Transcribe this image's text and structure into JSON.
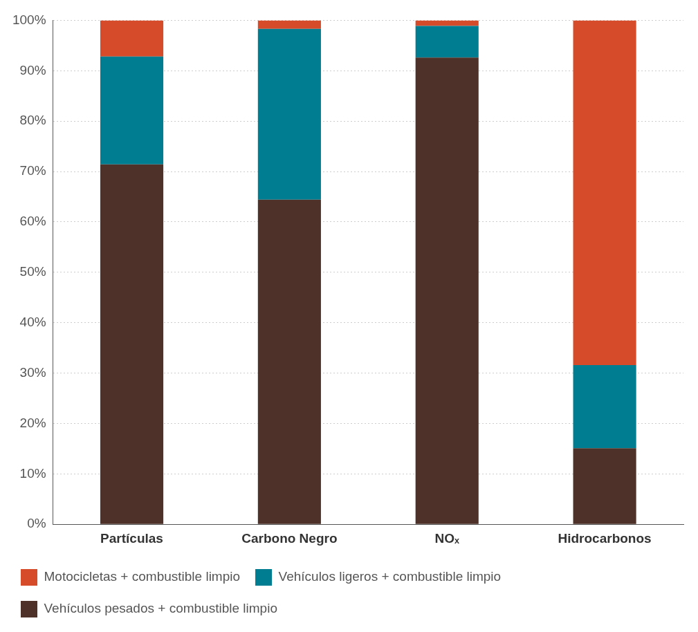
{
  "chart_data": {
    "type": "bar",
    "stacked": true,
    "categories": [
      "Partículas",
      "Carbono Negro",
      "NOₓ",
      "Hidrocarbonos"
    ],
    "series": [
      {
        "name": "Vehículos pesados + combustible limpio",
        "color": "#4e3229",
        "values": [
          71.4,
          64.4,
          92.6,
          15.1
        ]
      },
      {
        "name": "Vehículos ligeros + combustible limpio",
        "color": "#007d91",
        "values": [
          21.4,
          33.9,
          6.3,
          16.5
        ]
      },
      {
        "name": "Motocicletas + combustible limpio",
        "color": "#d64b2a",
        "values": [
          7.2,
          1.7,
          1.1,
          68.4
        ]
      }
    ],
    "ylim": [
      0,
      100
    ],
    "yticks": [
      {
        "value": 0,
        "label": "0%"
      },
      {
        "value": 10,
        "label": "10%"
      },
      {
        "value": 20,
        "label": "20%"
      },
      {
        "value": 30,
        "label": "30%"
      },
      {
        "value": 40,
        "label": "40%"
      },
      {
        "value": 50,
        "label": "50%"
      },
      {
        "value": 60,
        "label": "60%"
      },
      {
        "value": 70,
        "label": "70%"
      },
      {
        "value": 80,
        "label": "80%"
      },
      {
        "value": 90,
        "label": "90%"
      },
      {
        "value": 100,
        "label": "100%"
      }
    ],
    "grid": "y",
    "legend": "bottom"
  }
}
